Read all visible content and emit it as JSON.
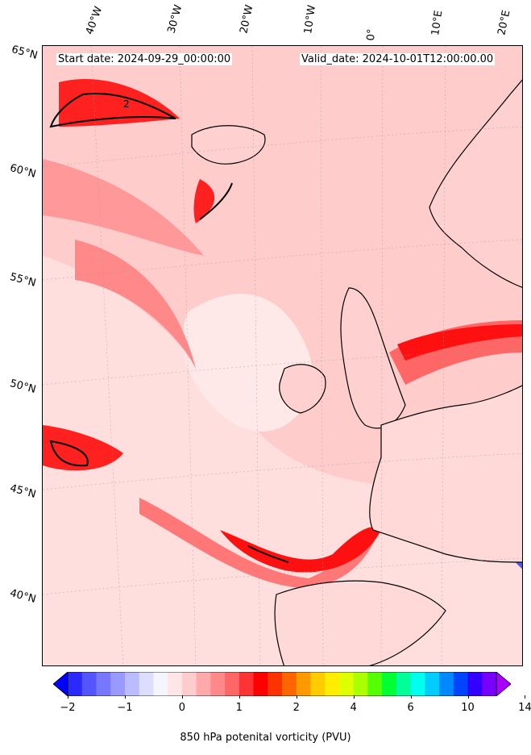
{
  "map": {
    "start_date": "Start date: 2024-09-29_00:00:00",
    "valid_date": "Valid_date: 2024-10-01T12:00:00.00",
    "lon_labels": [
      "40°W",
      "30°W",
      "20°W",
      "10°W",
      "0°",
      "10°E",
      "20°E"
    ],
    "lat_labels": [
      "65°N",
      "60°N",
      "55°N",
      "50°N",
      "45°N",
      "40°N"
    ],
    "contour_label": "2",
    "colors": {
      "land_outline": "#000000",
      "high_pv": "#ff0000",
      "low_pv": "#0000ff",
      "background_pv": "#ffc0c0"
    }
  },
  "colorbar": {
    "title": "850 hPa potenital vorticity (PVU)",
    "tick_labels": [
      "-2",
      "-1",
      "0",
      "1",
      "2",
      "4",
      "6",
      "10",
      "14"
    ],
    "colors": [
      "#0000ff",
      "#2a2aff",
      "#5555ff",
      "#7777ff",
      "#9999ff",
      "#bbbbff",
      "#ddddff",
      "#f5f5ff",
      "#ffe6e6",
      "#ffcccc",
      "#ffaaaa",
      "#ff8888",
      "#ff6666",
      "#ff3333",
      "#ff0000",
      "#ff3300",
      "#ff6600",
      "#ff9900",
      "#ffcc00",
      "#ffee00",
      "#ddff00",
      "#aaff00",
      "#55ff00",
      "#00ff33",
      "#00ff99",
      "#00ffee",
      "#00ccff",
      "#0088ff",
      "#0044ff",
      "#3300ff",
      "#7700ff",
      "#aa00ff"
    ]
  }
}
